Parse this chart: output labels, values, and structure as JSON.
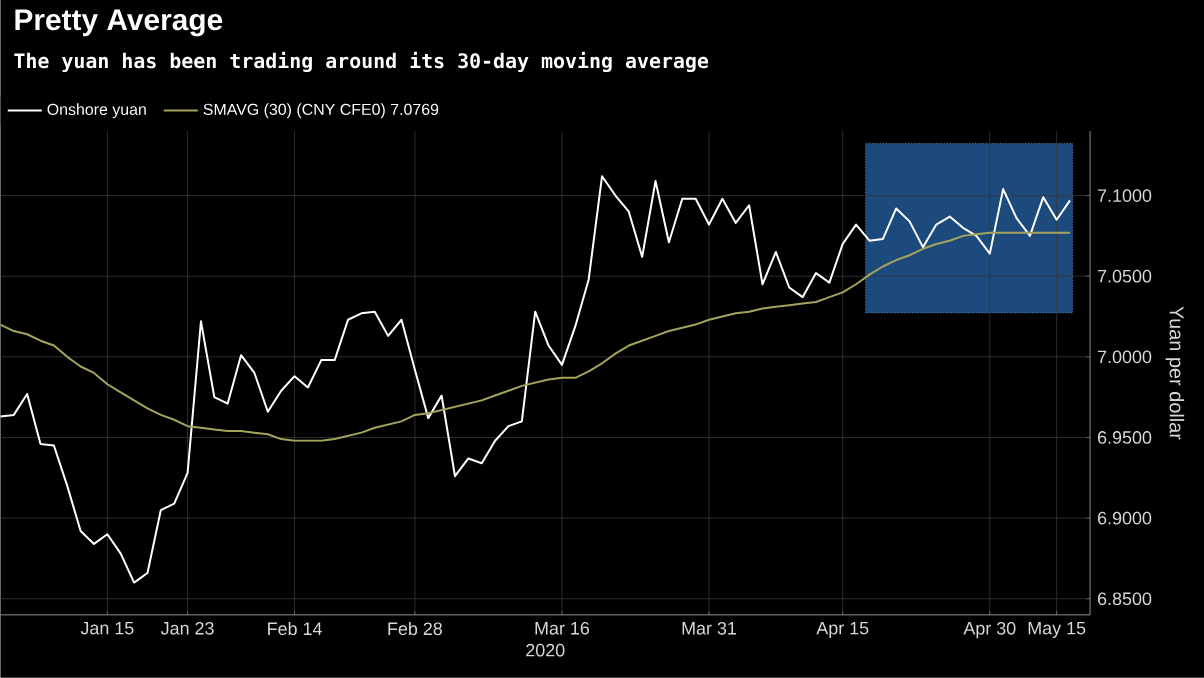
{
  "chart_data": {
    "type": "line",
    "title": "Pretty Average",
    "subtitle": "The yuan has been trading around its 30-day moving average",
    "xlabel": "2020",
    "ylabel": "Yuan per dollar",
    "categories": [
      null,
      null,
      null,
      null,
      null,
      null,
      null,
      null,
      "Jan 15",
      null,
      null,
      null,
      null,
      null,
      "Jan 23",
      null,
      null,
      null,
      null,
      null,
      null,
      null,
      "Feb 14",
      null,
      null,
      null,
      null,
      null,
      null,
      null,
      null,
      "Feb 28",
      null,
      null,
      null,
      null,
      null,
      null,
      null,
      null,
      null,
      null,
      "Mar 16",
      null,
      null,
      null,
      null,
      null,
      null,
      null,
      null,
      null,
      null,
      "Mar 31",
      null,
      null,
      null,
      null,
      null,
      null,
      null,
      null,
      null,
      "Apr 15",
      null,
      null,
      null,
      null,
      null,
      null,
      null,
      null,
      null,
      null,
      "Apr 30",
      null,
      null,
      null,
      null,
      "May 15",
      null
    ],
    "series": [
      {
        "name": "Onshore yuan",
        "color": "#ffffff",
        "values": [
          6.963,
          6.964,
          6.977,
          6.946,
          6.945,
          6.92,
          6.892,
          6.884,
          6.89,
          6.878,
          6.86,
          6.866,
          6.905,
          6.909,
          6.928,
          7.022,
          6.975,
          6.971,
          7.001,
          6.99,
          6.966,
          6.979,
          6.988,
          6.981,
          6.998,
          6.998,
          7.023,
          7.027,
          7.028,
          7.013,
          7.023,
          6.992,
          6.962,
          6.976,
          6.926,
          6.937,
          6.934,
          6.948,
          6.957,
          6.96,
          7.028,
          7.007,
          6.995,
          7.019,
          7.048,
          7.112,
          7.1,
          7.09,
          7.062,
          7.109,
          7.071,
          7.098,
          7.098,
          7.082,
          7.098,
          7.083,
          7.094,
          7.045,
          7.065,
          7.043,
          7.037,
          7.052,
          7.046,
          7.07,
          7.082,
          7.072,
          7.073,
          7.092,
          7.084,
          7.068,
          7.082,
          7.087,
          7.08,
          7.075,
          7.064,
          7.104,
          7.086,
          7.075,
          7.099,
          7.085,
          7.097
        ]
      },
      {
        "name": "SMAVG (30) (CNY CFE0) 7.0769",
        "color": "#a3a35c",
        "values": [
          7.02,
          7.016,
          7.014,
          7.01,
          7.007,
          7.0,
          6.994,
          6.99,
          6.983,
          6.978,
          6.973,
          6.968,
          6.964,
          6.961,
          6.957,
          6.956,
          6.955,
          6.954,
          6.954,
          6.953,
          6.952,
          6.949,
          6.948,
          6.948,
          6.948,
          6.949,
          6.951,
          6.953,
          6.956,
          6.958,
          6.96,
          6.964,
          6.965,
          6.967,
          6.969,
          6.971,
          6.973,
          6.976,
          6.979,
          6.982,
          6.984,
          6.986,
          6.987,
          6.987,
          6.991,
          6.996,
          7.002,
          7.007,
          7.01,
          7.013,
          7.016,
          7.018,
          7.02,
          7.023,
          7.025,
          7.027,
          7.028,
          7.03,
          7.031,
          7.032,
          7.033,
          7.034,
          7.037,
          7.04,
          7.045,
          7.051,
          7.056,
          7.06,
          7.063,
          7.067,
          7.07,
          7.072,
          7.075,
          7.076,
          7.077,
          7.077,
          7.077,
          7.077,
          7.077,
          7.077,
          7.077
        ]
      }
    ],
    "ylim": [
      6.84,
      7.14
    ],
    "yticks": [
      {
        "value": 6.85,
        "label": "6.8500"
      },
      {
        "value": 6.9,
        "label": "6.9000"
      },
      {
        "value": 6.95,
        "label": "6.9500"
      },
      {
        "value": 7.0,
        "label": "7.0000"
      },
      {
        "value": 7.05,
        "label": "7.0500"
      },
      {
        "value": 7.1,
        "label": "7.1000"
      }
    ],
    "grid": true,
    "legend": "top left",
    "line_style": "solid",
    "marker": "none"
  }
}
